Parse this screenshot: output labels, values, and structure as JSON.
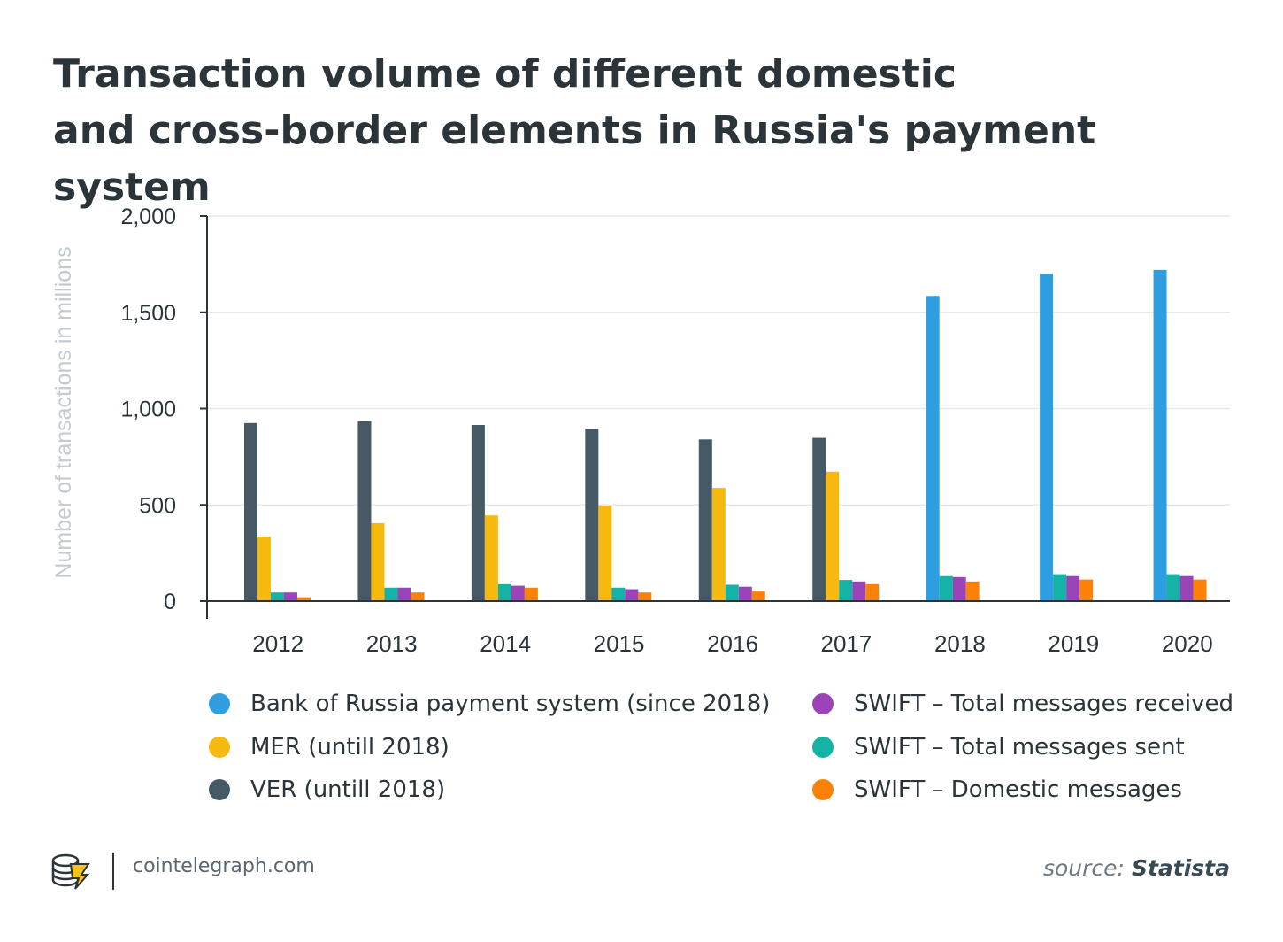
{
  "title_line1": "Transaction volume of different domestic",
  "title_line2": "and cross-border elements in Russia's payment system",
  "chart_data": {
    "type": "bar",
    "ylabel": "Number of transactions in millions",
    "ylim": [
      0,
      2000
    ],
    "yticks": [
      0,
      500,
      1000,
      1500,
      2000
    ],
    "ytick_labels": [
      "0",
      "500",
      "1,000",
      "1,500",
      "2,000"
    ],
    "categories": [
      "2012",
      "2013",
      "2014",
      "2015",
      "2016",
      "2017",
      "2018",
      "2019",
      "2020"
    ],
    "grid": true,
    "legend_position": "bottom",
    "series": [
      {
        "name": "VER (untill 2018)",
        "color": "#455a64",
        "values": [
          925,
          935,
          915,
          895,
          840,
          848,
          null,
          null,
          null
        ]
      },
      {
        "name": "Bank of Russia payment system (since 2018)",
        "color": "#2f9ee0",
        "values": [
          null,
          null,
          null,
          null,
          null,
          null,
          1585,
          1700,
          1720
        ]
      },
      {
        "name": "MER (untill 2018)",
        "color": "#f5b90f",
        "values": [
          335,
          405,
          445,
          497,
          588,
          672,
          null,
          null,
          null
        ]
      },
      {
        "name": "SWIFT – Total messages sent",
        "color": "#14b3a5",
        "values": [
          45,
          70,
          88,
          70,
          85,
          110,
          130,
          140,
          140
        ]
      },
      {
        "name": "SWIFT – Total messages received",
        "color": "#9b44b8",
        "values": [
          45,
          70,
          80,
          62,
          75,
          102,
          125,
          130,
          130
        ]
      },
      {
        "name": "SWIFT – Domestic messages",
        "color": "#fb8109",
        "values": [
          20,
          45,
          70,
          45,
          50,
          88,
          102,
          112,
          112
        ]
      }
    ]
  },
  "legend_left": [
    {
      "label": "Bank of Russia payment system (since 2018)",
      "color": "#2f9ee0"
    },
    {
      "label": "MER (untill 2018)",
      "color": "#f5b90f"
    },
    {
      "label": "VER (untill 2018)",
      "color": "#455a64"
    }
  ],
  "legend_right": [
    {
      "label": "SWIFT – Total messages received",
      "color": "#9b44b8"
    },
    {
      "label": "SWIFT – Total messages sent",
      "color": "#14b3a5"
    },
    {
      "label": "SWIFT – Domestic messages",
      "color": "#fb8109"
    }
  ],
  "footer": {
    "site": "cointelegraph.com",
    "source_prefix": "source: ",
    "source_name": "Statista",
    "logo_icon": "cointelegraph-coin-logo-icon"
  }
}
